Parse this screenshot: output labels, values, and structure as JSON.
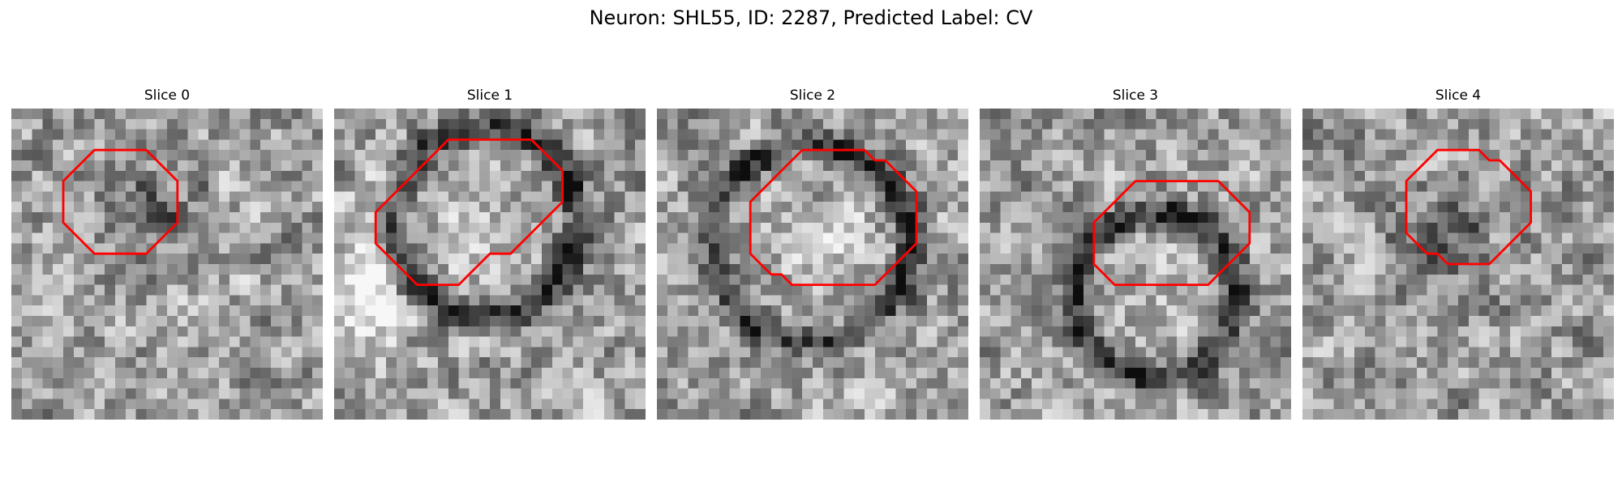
{
  "figure": {
    "title": "Neuron: SHL55, ID: 2287, Predicted Label: CV"
  },
  "slices": [
    {
      "title": "Slice 0",
      "seed": 11,
      "image": {
        "ring": 0.1,
        "blob": 0.85,
        "cx": 13.5,
        "cy": 10.0,
        "r": 6.0,
        "bright_left": 0.0
      },
      "contour": [
        [
          5,
          11
        ],
        [
          6,
          12
        ],
        [
          7,
          13
        ],
        [
          8,
          14
        ],
        [
          9,
          14
        ],
        [
          10,
          14
        ],
        [
          11,
          14
        ],
        [
          12,
          14
        ],
        [
          13,
          14
        ],
        [
          14,
          13
        ],
        [
          15,
          12
        ],
        [
          16,
          11
        ],
        [
          16,
          10
        ],
        [
          16,
          9
        ],
        [
          16,
          8
        ],
        [
          16,
          7
        ],
        [
          15,
          6
        ],
        [
          14,
          5
        ],
        [
          13,
          4
        ],
        [
          12,
          4
        ],
        [
          11,
          4
        ],
        [
          10,
          4
        ],
        [
          9,
          4
        ],
        [
          8,
          4
        ],
        [
          7,
          5
        ],
        [
          6,
          6
        ],
        [
          5,
          7
        ],
        [
          5,
          8
        ],
        [
          5,
          9
        ],
        [
          5,
          10
        ]
      ]
    },
    {
      "title": "Slice 1",
      "seed": 23,
      "image": {
        "ring": 1.0,
        "blob": 0.0,
        "cx": 14.5,
        "cy": 11.0,
        "r": 9.0,
        "bright_left": 0.35
      },
      "contour": [
        [
          5,
          14
        ],
        [
          6,
          15
        ],
        [
          7,
          16
        ],
        [
          8,
          17
        ],
        [
          9,
          17
        ],
        [
          10,
          17
        ],
        [
          11,
          17
        ],
        [
          12,
          17
        ],
        [
          13,
          16
        ],
        [
          14,
          15
        ],
        [
          15,
          14
        ],
        [
          16,
          14
        ],
        [
          17,
          14
        ],
        [
          18,
          13
        ],
        [
          19,
          12
        ],
        [
          20,
          11
        ],
        [
          21,
          10
        ],
        [
          22,
          9
        ],
        [
          22,
          8
        ],
        [
          22,
          7
        ],
        [
          22,
          6
        ],
        [
          21,
          5
        ],
        [
          20,
          4
        ],
        [
          19,
          3
        ],
        [
          18,
          3
        ],
        [
          17,
          3
        ],
        [
          16,
          3
        ],
        [
          15,
          3
        ],
        [
          14,
          3
        ],
        [
          13,
          3
        ],
        [
          12,
          3
        ],
        [
          11,
          3
        ],
        [
          10,
          4
        ],
        [
          9,
          5
        ],
        [
          8,
          6
        ],
        [
          7,
          7
        ],
        [
          6,
          8
        ],
        [
          5,
          9
        ],
        [
          4,
          10
        ],
        [
          4,
          11
        ],
        [
          4,
          12
        ],
        [
          4,
          13
        ]
      ]
    },
    {
      "title": "Slice 2",
      "seed": 37,
      "image": {
        "ring": 1.0,
        "blob": 0.0,
        "cx": 15.0,
        "cy": 13.0,
        "r": 9.5,
        "bright_left": 0.0
      },
      "contour": [
        [
          9,
          14
        ],
        [
          10,
          15
        ],
        [
          11,
          16
        ],
        [
          12,
          16
        ],
        [
          13,
          17
        ],
        [
          14,
          17
        ],
        [
          15,
          17
        ],
        [
          16,
          17
        ],
        [
          17,
          17
        ],
        [
          18,
          17
        ],
        [
          19,
          17
        ],
        [
          20,
          17
        ],
        [
          21,
          17
        ],
        [
          22,
          16
        ],
        [
          23,
          15
        ],
        [
          24,
          14
        ],
        [
          25,
          13
        ],
        [
          25,
          12
        ],
        [
          25,
          11
        ],
        [
          25,
          10
        ],
        [
          25,
          9
        ],
        [
          25,
          8
        ],
        [
          24,
          7
        ],
        [
          23,
          6
        ],
        [
          22,
          5
        ],
        [
          21,
          5
        ],
        [
          20,
          4
        ],
        [
          19,
          4
        ],
        [
          18,
          4
        ],
        [
          17,
          4
        ],
        [
          16,
          4
        ],
        [
          15,
          4
        ],
        [
          14,
          4
        ],
        [
          13,
          5
        ],
        [
          12,
          6
        ],
        [
          11,
          7
        ],
        [
          10,
          8
        ],
        [
          9,
          9
        ],
        [
          9,
          10
        ],
        [
          9,
          11
        ],
        [
          9,
          12
        ],
        [
          9,
          13
        ]
      ]
    },
    {
      "title": "Slice 3",
      "seed": 53,
      "image": {
        "ring": 1.0,
        "blob": 0.0,
        "cx": 17.0,
        "cy": 18.0,
        "r": 8.0,
        "bright_left": 0.0
      },
      "contour": [
        [
          11,
          15
        ],
        [
          12,
          16
        ],
        [
          13,
          17
        ],
        [
          14,
          17
        ],
        [
          15,
          17
        ],
        [
          16,
          17
        ],
        [
          17,
          17
        ],
        [
          18,
          17
        ],
        [
          19,
          17
        ],
        [
          20,
          17
        ],
        [
          21,
          17
        ],
        [
          22,
          17
        ],
        [
          23,
          16
        ],
        [
          24,
          15
        ],
        [
          25,
          14
        ],
        [
          26,
          13
        ],
        [
          26,
          12
        ],
        [
          26,
          11
        ],
        [
          26,
          10
        ],
        [
          25,
          9
        ],
        [
          24,
          8
        ],
        [
          23,
          7
        ],
        [
          22,
          7
        ],
        [
          21,
          7
        ],
        [
          20,
          7
        ],
        [
          19,
          7
        ],
        [
          18,
          7
        ],
        [
          17,
          7
        ],
        [
          16,
          7
        ],
        [
          15,
          7
        ],
        [
          14,
          8
        ],
        [
          13,
          9
        ],
        [
          12,
          10
        ],
        [
          11,
          11
        ],
        [
          11,
          12
        ],
        [
          11,
          13
        ],
        [
          11,
          14
        ]
      ]
    },
    {
      "title": "Slice 4",
      "seed": 71,
      "image": {
        "ring": 0.15,
        "blob": 0.8,
        "cx": 14.5,
        "cy": 13.0,
        "r": 6.5,
        "bright_left": 0.0
      },
      "contour": [
        [
          10,
          12
        ],
        [
          11,
          13
        ],
        [
          12,
          14
        ],
        [
          13,
          14
        ],
        [
          14,
          15
        ],
        [
          15,
          15
        ],
        [
          16,
          15
        ],
        [
          17,
          15
        ],
        [
          18,
          15
        ],
        [
          19,
          14
        ],
        [
          20,
          13
        ],
        [
          21,
          12
        ],
        [
          22,
          11
        ],
        [
          22,
          10
        ],
        [
          22,
          9
        ],
        [
          22,
          8
        ],
        [
          21,
          7
        ],
        [
          20,
          6
        ],
        [
          19,
          5
        ],
        [
          18,
          5
        ],
        [
          17,
          4
        ],
        [
          16,
          4
        ],
        [
          15,
          4
        ],
        [
          14,
          4
        ],
        [
          13,
          4
        ],
        [
          12,
          5
        ],
        [
          11,
          6
        ],
        [
          10,
          7
        ],
        [
          10,
          8
        ],
        [
          10,
          9
        ],
        [
          10,
          10
        ],
        [
          10,
          11
        ]
      ]
    }
  ]
}
